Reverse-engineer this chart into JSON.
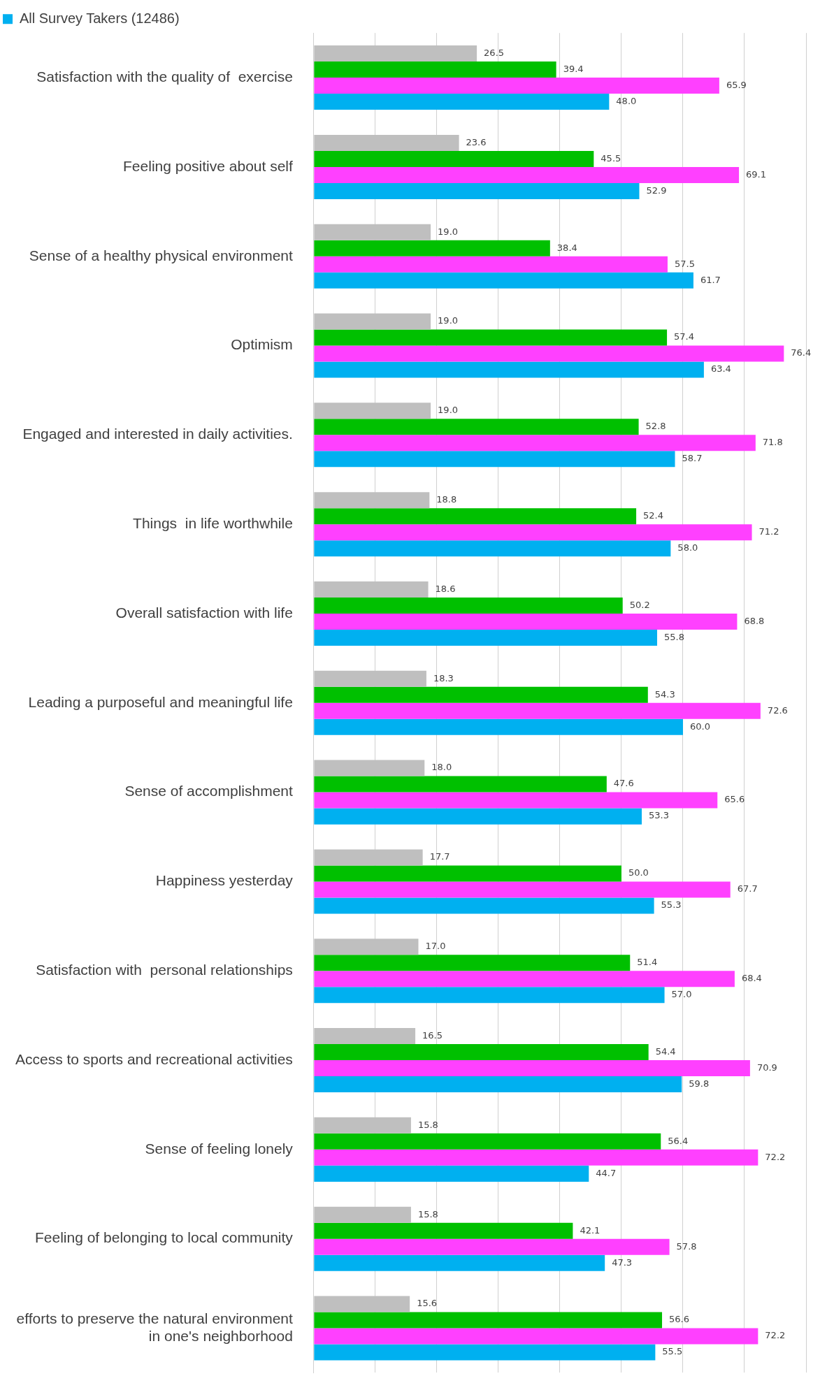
{
  "chart_data": {
    "type": "bar",
    "orientation": "horizontal",
    "legend": "top",
    "grid": "x",
    "tick_labels": "y",
    "categories": [
      "Satisfaction with the quality of  exercise",
      "Feeling positive about self",
      "Sense of a healthy physical environment",
      "Optimism",
      "Engaged and interested in daily activities.",
      "Things  in life worthwhile",
      "Overall satisfaction with life",
      "Leading a purposeful and meaningful life",
      "Sense of accomplishment",
      "Happiness yesterday",
      "Satisfaction with  personal relationships",
      "Access to sports and recreational activities",
      "Sense of feeling lonely",
      "Feeling of belonging to local community",
      "efforts to preserve the natural environment\nin one's neighborhood"
    ],
    "xlim": [
      0,
      80
    ],
    "xticks": [
      {
        "value": 0,
        "label": null
      },
      {
        "value": 10,
        "label": null
      },
      {
        "value": 20,
        "label": null
      },
      {
        "value": 30,
        "label": null
      },
      {
        "value": 40,
        "label": null
      },
      {
        "value": 50,
        "label": null
      },
      {
        "value": 60,
        "label": null
      },
      {
        "value": 70,
        "label": null
      },
      {
        "value": 80,
        "label": null
      }
    ],
    "series": [
      {
        "color": "#bfbfbf",
        "values": [
          26.5,
          23.6,
          19.0,
          19.0,
          19.0,
          18.8,
          18.6,
          18.3,
          18.0,
          17.7,
          17.0,
          16.5,
          15.8,
          15.8,
          15.6
        ],
        "value_labels": [
          "26.5",
          "23.6",
          "19.0",
          "19.0",
          "19.0",
          "18.8",
          "18.6",
          "18.3",
          "18.0",
          "17.7",
          "17.0",
          "16.5",
          "15.8",
          "15.8",
          "15.6"
        ]
      },
      {
        "color": "#00c000",
        "values": [
          39.4,
          45.5,
          38.4,
          57.4,
          52.8,
          52.4,
          50.2,
          54.3,
          47.6,
          50.0,
          51.4,
          54.4,
          56.4,
          42.1,
          56.6
        ],
        "value_labels": [
          "39.4",
          "45.5",
          "38.4",
          "57.4",
          "52.8",
          "52.4",
          "50.2",
          "54.3",
          "47.6",
          "50.0",
          "51.4",
          "54.4",
          "56.4",
          "42.1",
          "56.6"
        ]
      },
      {
        "color": "#ff40ff",
        "values": [
          65.9,
          69.1,
          57.5,
          76.4,
          71.8,
          71.2,
          68.8,
          72.6,
          65.6,
          67.7,
          68.4,
          70.9,
          72.2,
          57.8,
          72.2
        ],
        "value_labels": [
          "65.9",
          "69.1",
          "57.5",
          "76.4",
          "71.8",
          "71.2",
          "68.8",
          "72.6",
          "65.6",
          "67.7",
          "68.4",
          "70.9",
          "72.2",
          "57.8",
          "72.2"
        ]
      },
      {
        "name": "All Survey Takers (12486)",
        "color": "#00b0f0",
        "values": [
          48.0,
          52.9,
          61.7,
          63.4,
          58.7,
          58.0,
          55.8,
          60.0,
          53.3,
          55.3,
          57.0,
          59.8,
          44.7,
          47.3,
          55.5
        ],
        "value_labels": [
          "48.0",
          "52.9",
          "61.7",
          "63.4",
          "58.7",
          "58.0",
          "55.8",
          "60.0",
          "53.3",
          "55.3",
          "57.0",
          "59.8",
          "44.7",
          "47.3",
          "55.5"
        ]
      }
    ]
  }
}
